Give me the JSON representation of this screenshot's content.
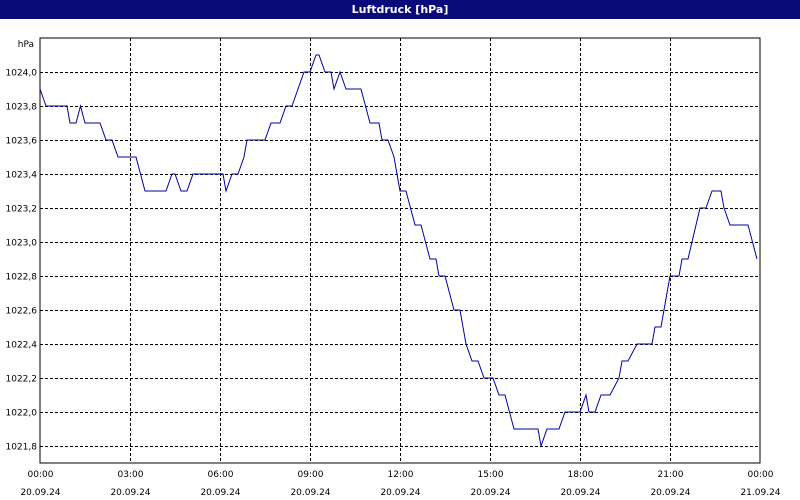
{
  "window": {
    "title": "Luftdruck [hPa]"
  },
  "chart_data": {
    "type": "line",
    "title": "Luftdruck [hPa]",
    "ylabel": "hPa",
    "xlabel": "",
    "xlim": [
      "20.09.24 00:00",
      "21.09.24 00:00"
    ],
    "ylim": [
      1021.7,
      1024.2
    ],
    "grid": true,
    "yticks": [
      {
        "value": 1021.8,
        "label": "1021,8"
      },
      {
        "value": 1022.0,
        "label": "1022,0"
      },
      {
        "value": 1022.2,
        "label": "1022,2"
      },
      {
        "value": 1022.4,
        "label": "1022,4"
      },
      {
        "value": 1022.6,
        "label": "1022,6"
      },
      {
        "value": 1022.8,
        "label": "1022,8"
      },
      {
        "value": 1023.0,
        "label": "1023,0"
      },
      {
        "value": 1023.2,
        "label": "1023,2"
      },
      {
        "value": 1023.4,
        "label": "1023,4"
      },
      {
        "value": 1023.6,
        "label": "1023,6"
      },
      {
        "value": 1023.8,
        "label": "1023,8"
      },
      {
        "value": 1024.0,
        "label": "1024,0"
      }
    ],
    "xticks": [
      {
        "hour": 0,
        "time": "00:00",
        "date": "20.09.24"
      },
      {
        "hour": 3,
        "time": "03:00",
        "date": "20.09.24"
      },
      {
        "hour": 6,
        "time": "06:00",
        "date": "20.09.24"
      },
      {
        "hour": 9,
        "time": "09:00",
        "date": "20.09.24"
      },
      {
        "hour": 12,
        "time": "12:00",
        "date": "20.09.24"
      },
      {
        "hour": 15,
        "time": "15:00",
        "date": "20.09.24"
      },
      {
        "hour": 18,
        "time": "18:00",
        "date": "20.09.24"
      },
      {
        "hour": 21,
        "time": "21:00",
        "date": "20.09.24"
      },
      {
        "hour": 24,
        "time": "00:00",
        "date": "21.09.24"
      }
    ],
    "series": [
      {
        "color": "#0000aa",
        "points": [
          [
            0.0,
            1023.9
          ],
          [
            0.2,
            1023.8
          ],
          [
            0.6,
            1023.8
          ],
          [
            0.9,
            1023.8
          ],
          [
            1.0,
            1023.7
          ],
          [
            1.2,
            1023.7
          ],
          [
            1.35,
            1023.8
          ],
          [
            1.5,
            1023.7
          ],
          [
            1.7,
            1023.7
          ],
          [
            2.0,
            1023.7
          ],
          [
            2.2,
            1023.6
          ],
          [
            2.4,
            1023.6
          ],
          [
            2.6,
            1023.5
          ],
          [
            2.9,
            1023.5
          ],
          [
            3.2,
            1023.5
          ],
          [
            3.5,
            1023.3
          ],
          [
            3.9,
            1023.3
          ],
          [
            4.2,
            1023.3
          ],
          [
            4.4,
            1023.4
          ],
          [
            4.5,
            1023.4
          ],
          [
            4.7,
            1023.3
          ],
          [
            4.9,
            1023.3
          ],
          [
            5.1,
            1023.4
          ],
          [
            5.5,
            1023.4
          ],
          [
            5.9,
            1023.4
          ],
          [
            6.1,
            1023.4
          ],
          [
            6.2,
            1023.3
          ],
          [
            6.4,
            1023.4
          ],
          [
            6.6,
            1023.4
          ],
          [
            6.8,
            1023.5
          ],
          [
            6.9,
            1023.6
          ],
          [
            7.5,
            1023.6
          ],
          [
            7.7,
            1023.7
          ],
          [
            8.0,
            1023.7
          ],
          [
            8.2,
            1023.8
          ],
          [
            8.4,
            1023.8
          ],
          [
            8.6,
            1023.9
          ],
          [
            8.8,
            1024.0
          ],
          [
            9.0,
            1024.0
          ],
          [
            9.2,
            1024.1
          ],
          [
            9.3,
            1024.1
          ],
          [
            9.5,
            1024.0
          ],
          [
            9.7,
            1024.0
          ],
          [
            9.8,
            1023.9
          ],
          [
            10.0,
            1024.0
          ],
          [
            10.2,
            1023.9
          ],
          [
            10.5,
            1023.9
          ],
          [
            10.7,
            1023.9
          ],
          [
            11.0,
            1023.7
          ],
          [
            11.3,
            1023.7
          ],
          [
            11.4,
            1023.6
          ],
          [
            11.6,
            1023.6
          ],
          [
            11.8,
            1023.5
          ],
          [
            12.0,
            1023.3
          ],
          [
            12.2,
            1023.3
          ],
          [
            12.5,
            1023.1
          ],
          [
            12.7,
            1023.1
          ],
          [
            13.0,
            1022.9
          ],
          [
            13.2,
            1022.9
          ],
          [
            13.3,
            1022.8
          ],
          [
            13.5,
            1022.8
          ],
          [
            13.8,
            1022.6
          ],
          [
            14.0,
            1022.6
          ],
          [
            14.2,
            1022.4
          ],
          [
            14.4,
            1022.3
          ],
          [
            14.6,
            1022.3
          ],
          [
            14.8,
            1022.2
          ],
          [
            15.1,
            1022.2
          ],
          [
            15.3,
            1022.1
          ],
          [
            15.5,
            1022.1
          ],
          [
            15.8,
            1021.9
          ],
          [
            16.3,
            1021.9
          ],
          [
            16.6,
            1021.9
          ],
          [
            16.7,
            1021.8
          ],
          [
            16.9,
            1021.9
          ],
          [
            17.3,
            1021.9
          ],
          [
            17.5,
            1022.0
          ],
          [
            17.8,
            1022.0
          ],
          [
            18.0,
            1022.0
          ],
          [
            18.2,
            1022.1
          ],
          [
            18.3,
            1022.0
          ],
          [
            18.5,
            1022.0
          ],
          [
            18.7,
            1022.1
          ],
          [
            19.0,
            1022.1
          ],
          [
            19.3,
            1022.2
          ],
          [
            19.4,
            1022.3
          ],
          [
            19.6,
            1022.3
          ],
          [
            19.9,
            1022.4
          ],
          [
            20.2,
            1022.4
          ],
          [
            20.4,
            1022.4
          ],
          [
            20.5,
            1022.5
          ],
          [
            20.7,
            1022.5
          ],
          [
            21.0,
            1022.8
          ],
          [
            21.3,
            1022.8
          ],
          [
            21.4,
            1022.9
          ],
          [
            21.6,
            1022.9
          ],
          [
            22.0,
            1023.2
          ],
          [
            22.2,
            1023.2
          ],
          [
            22.4,
            1023.3
          ],
          [
            22.7,
            1023.3
          ],
          [
            22.8,
            1023.2
          ],
          [
            23.0,
            1023.1
          ],
          [
            23.4,
            1023.1
          ],
          [
            23.6,
            1023.1
          ],
          [
            23.9,
            1022.9
          ]
        ]
      }
    ]
  }
}
